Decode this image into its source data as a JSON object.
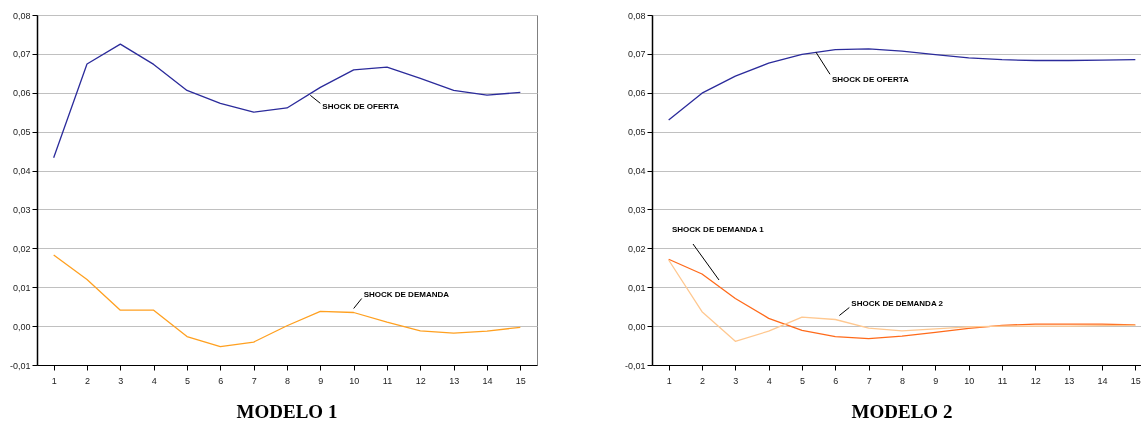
{
  "chart_data": [
    {
      "type": "line",
      "title": "MODELO 1",
      "x": [
        1,
        2,
        3,
        4,
        5,
        6,
        7,
        8,
        9,
        10,
        11,
        12,
        13,
        14,
        15
      ],
      "xlim": [
        0.5,
        15.5
      ],
      "xticks": [
        1,
        2,
        3,
        4,
        5,
        6,
        7,
        8,
        9,
        10,
        11,
        12,
        13,
        14,
        15
      ],
      "ylim": [
        -0.01,
        0.08
      ],
      "yticks": [
        {
          "value": -0.01,
          "label": "-0,01"
        },
        {
          "value": 0,
          "label": "0,00"
        },
        {
          "value": 0.01,
          "label": "0,01"
        },
        {
          "value": 0.02,
          "label": "0,02"
        },
        {
          "value": 0.03,
          "label": "0,03"
        },
        {
          "value": 0.04,
          "label": "0,04"
        },
        {
          "value": 0.05,
          "label": "0,05"
        },
        {
          "value": 0.06,
          "label": "0,06"
        },
        {
          "value": 0.07,
          "label": "0,07"
        },
        {
          "value": 0.08,
          "label": "0,08"
        }
      ],
      "grid": "y",
      "marker": "none",
      "line_style": "solid",
      "series": [
        {
          "name": "SHOCK DE OFERTA",
          "color": "#2b2b9b",
          "values": [
            0.0433,
            0.0674,
            0.0725,
            0.0673,
            0.0606,
            0.0573,
            0.055,
            0.0561,
            0.0614,
            0.0659,
            0.0666,
            0.0637,
            0.0606,
            0.0594,
            0.0601
          ]
        },
        {
          "name": "SHOCK DE DEMANDA",
          "color": "#ffa020",
          "values": [
            0.0183,
            0.012,
            0.0041,
            0.0041,
            -0.0027,
            -0.0053,
            -0.0041,
            0.0001,
            0.0038,
            0.0035,
            0.001,
            -0.0012,
            -0.0018,
            -0.0013,
            -0.0003
          ]
        }
      ]
    },
    {
      "type": "line",
      "title": "MODELO 2",
      "x": [
        1,
        2,
        3,
        4,
        5,
        6,
        7,
        8,
        9,
        10,
        11,
        12,
        13,
        14,
        15
      ],
      "xlim": [
        0.5,
        15.5
      ],
      "xticks": [
        1,
        2,
        3,
        4,
        5,
        6,
        7,
        8,
        9,
        10,
        11,
        12,
        13,
        14,
        15
      ],
      "ylim": [
        -0.01,
        0.08
      ],
      "yticks": [
        {
          "value": -0.01,
          "label": "-0,01"
        },
        {
          "value": 0,
          "label": "0,00"
        },
        {
          "value": 0.01,
          "label": "0,01"
        },
        {
          "value": 0.02,
          "label": "0,02"
        },
        {
          "value": 0.03,
          "label": "0,03"
        },
        {
          "value": 0.04,
          "label": "0,04"
        },
        {
          "value": 0.05,
          "label": "0,05"
        },
        {
          "value": 0.06,
          "label": "0,06"
        },
        {
          "value": 0.07,
          "label": "0,07"
        },
        {
          "value": 0.08,
          "label": "0,08"
        }
      ],
      "grid": "y",
      "marker": "none",
      "line_style": "solid",
      "series": [
        {
          "name": "SHOCK DE OFERTA",
          "color": "#2b2b9b",
          "values": [
            0.053,
            0.0599,
            0.0643,
            0.0676,
            0.0699,
            0.0711,
            0.0713,
            0.0707,
            0.0698,
            0.069,
            0.0685,
            0.0683,
            0.0683,
            0.0684,
            0.0685
          ]
        },
        {
          "name": "SHOCK DE DEMANDA 1",
          "color": "#ff6a1a",
          "values": [
            0.0172,
            0.0134,
            0.0071,
            0.002,
            -0.0011,
            -0.0027,
            -0.0032,
            -0.0026,
            -0.0016,
            -0.0006,
            0.0002,
            0.0005,
            0.0005,
            0.0005,
            0.0003
          ]
        },
        {
          "name": "SHOCK DE DEMANDA 2",
          "color": "#ffc890",
          "values": [
            0.017,
            0.0037,
            -0.0039,
            -0.0013,
            0.0023,
            0.0017,
            -0.0005,
            -0.0012,
            -0.0007,
            -0.0002,
            0.0,
            0.0,
            0.0,
            0.0001,
            0.0002
          ]
        }
      ]
    }
  ]
}
